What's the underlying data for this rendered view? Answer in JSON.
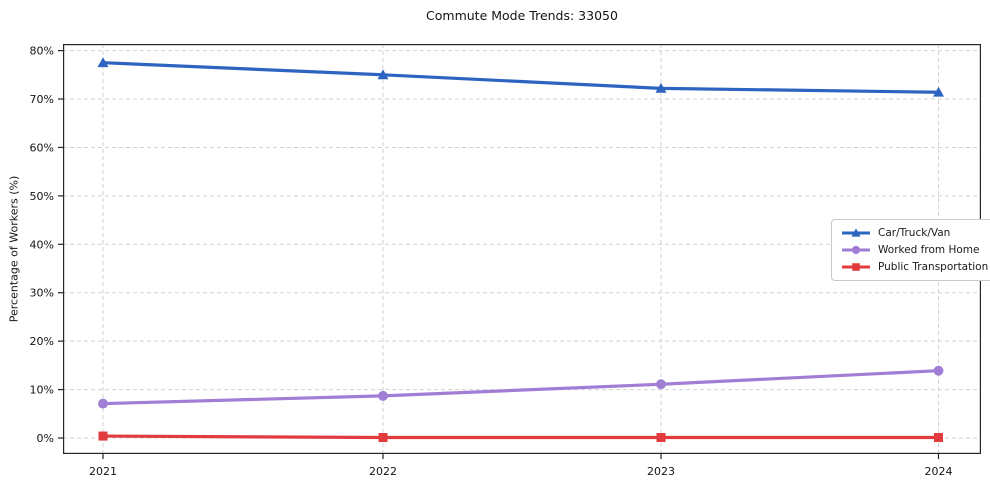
{
  "chart_data": {
    "type": "line",
    "title": "Commute Mode Trends: 33050",
    "xlabel": "",
    "ylabel": "Percentage of Workers (%)",
    "categories": [
      "2021",
      "2022",
      "2023",
      "2024"
    ],
    "y_ticks": [
      {
        "value": 0,
        "label": "0%"
      },
      {
        "value": 10,
        "label": "10%"
      },
      {
        "value": 20,
        "label": "20%"
      },
      {
        "value": 30,
        "label": "30%"
      },
      {
        "value": 40,
        "label": "40%"
      },
      {
        "value": 50,
        "label": "50%"
      },
      {
        "value": 60,
        "label": "60%"
      },
      {
        "value": 70,
        "label": "70%"
      },
      {
        "value": 80,
        "label": "80%"
      }
    ],
    "ylim": [
      -3.3,
      81.4
    ],
    "grid": true,
    "grid_style": "dashed",
    "legend_position": "center-right",
    "series": [
      {
        "name": "Car/Truck/Van",
        "marker": "triangle",
        "color": "#2d64c1",
        "values": [
          77.5,
          75.0,
          72.2,
          71.4
        ]
      },
      {
        "name": "Worked from Home",
        "marker": "circle",
        "color": "#a07ed6",
        "values": [
          7.1,
          8.7,
          11.1,
          13.9
        ]
      },
      {
        "name": "Public Transportation",
        "marker": "square",
        "color": "#e23b3e",
        "values": [
          0.4,
          0.1,
          0.1,
          0.1
        ]
      }
    ],
    "colors": {
      "grid": "#d2d2d2",
      "spine": "#262626",
      "tick_label": "#141414",
      "background": "#ffffff"
    }
  }
}
